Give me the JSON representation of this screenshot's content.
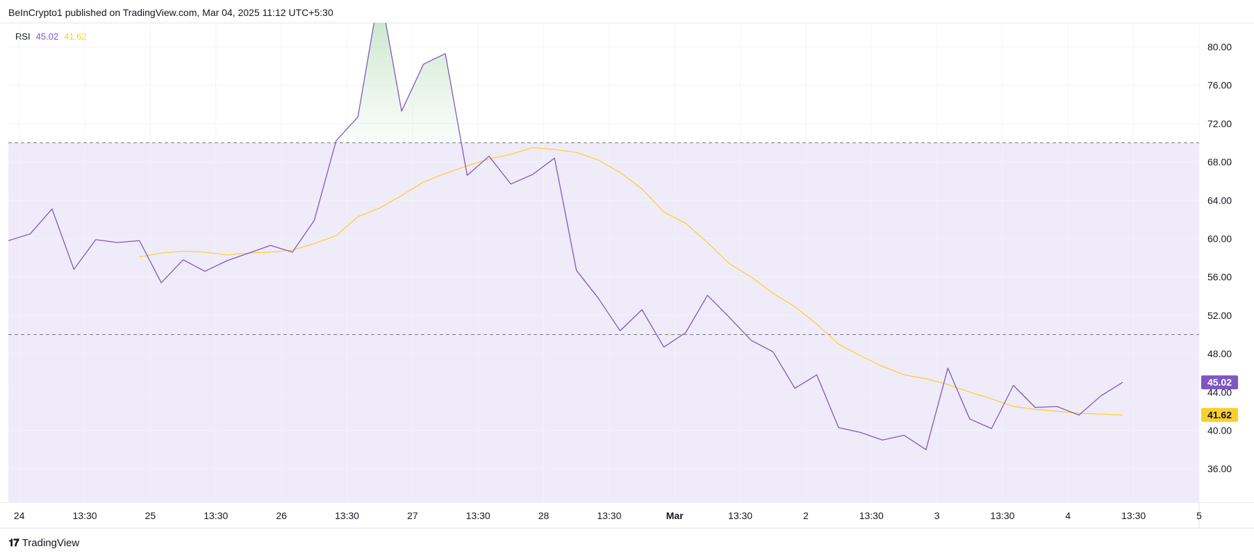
{
  "header": {
    "published": "BeInCrypto1 published on TradingView.com, Mar 04, 2025 11:12 UTC+5:30"
  },
  "legend": {
    "name": "RSI",
    "rsi_value": "45.02",
    "ma_value": "41.62"
  },
  "footer": {
    "brand": "TradingView",
    "logo_icon": "tradingview-logo-icon"
  },
  "colors": {
    "rsi": "#7e57c2",
    "ma": "#f7d02c",
    "band": "#f0ebf8",
    "overbought_fill": "#c8e6c9"
  },
  "chart_data": {
    "type": "line",
    "indicator": "RSI",
    "ylim": [
      32.5,
      82.5
    ],
    "y_ticks": [
      "80.00",
      "76.00",
      "72.00",
      "68.00",
      "64.00",
      "60.00",
      "56.00",
      "52.00",
      "48.00",
      "44.00",
      "40.00",
      "36.00"
    ],
    "x_ticks": [
      {
        "label": "24",
        "x": 0.5
      },
      {
        "label": "13:30",
        "x": 3.5
      },
      {
        "label": "25",
        "x": 6.5
      },
      {
        "label": "13:30",
        "x": 9.5
      },
      {
        "label": "26",
        "x": 12.5
      },
      {
        "label": "13:30",
        "x": 15.5
      },
      {
        "label": "27",
        "x": 18.5
      },
      {
        "label": "13:30",
        "x": 21.5
      },
      {
        "label": "28",
        "x": 24.5
      },
      {
        "label": "13:30",
        "x": 27.5
      },
      {
        "label": "Mar",
        "x": 30.5,
        "bold": true
      },
      {
        "label": "13:30",
        "x": 33.5
      },
      {
        "label": "2",
        "x": 36.5
      },
      {
        "label": "13:30",
        "x": 39.5
      },
      {
        "label": "3",
        "x": 42.5
      },
      {
        "label": "13:30",
        "x": 45.5
      },
      {
        "label": "4",
        "x": 48.5
      },
      {
        "label": "13:30",
        "x": 51.5
      },
      {
        "label": "5",
        "x": 54.5
      }
    ],
    "x_range": [
      0,
      54.5
    ],
    "bands": {
      "upper": 70,
      "middle": 50,
      "lower": 30
    },
    "series": [
      {
        "key": "rsi",
        "values": [
          59.8,
          60.5,
          63.1,
          56.8,
          59.9,
          59.6,
          59.8,
          55.4,
          57.8,
          56.6,
          57.7,
          58.5,
          59.3,
          58.6,
          61.9,
          70.2,
          72.7,
          86.0,
          73.3,
          78.2,
          79.3,
          66.6,
          68.6,
          65.7,
          66.7,
          68.4,
          56.7,
          53.8,
          50.4,
          52.6,
          48.7,
          50.2,
          54.1,
          51.8,
          49.4,
          48.2,
          44.4,
          45.8,
          40.3,
          39.8,
          39.0,
          39.5,
          38.0,
          46.5,
          41.2,
          40.2,
          44.7,
          42.4,
          42.5,
          41.6,
          43.6,
          45.02
        ]
      },
      {
        "key": "ma",
        "start": 6,
        "values": [
          58.1,
          58.5,
          58.7,
          58.6,
          58.3,
          58.5,
          58.6,
          58.8,
          59.5,
          60.3,
          62.3,
          63.2,
          64.5,
          65.9,
          66.8,
          67.6,
          68.3,
          68.8,
          69.5,
          69.3,
          69.0,
          68.2,
          66.9,
          65.2,
          62.8,
          61.6,
          59.6,
          57.4,
          56.0,
          54.3,
          52.9,
          51.1,
          49.0,
          47.8,
          46.7,
          45.8,
          45.4,
          44.8,
          44.0,
          43.3,
          42.5,
          42.2,
          42.0,
          41.8,
          41.7,
          41.62
        ]
      }
    ]
  }
}
